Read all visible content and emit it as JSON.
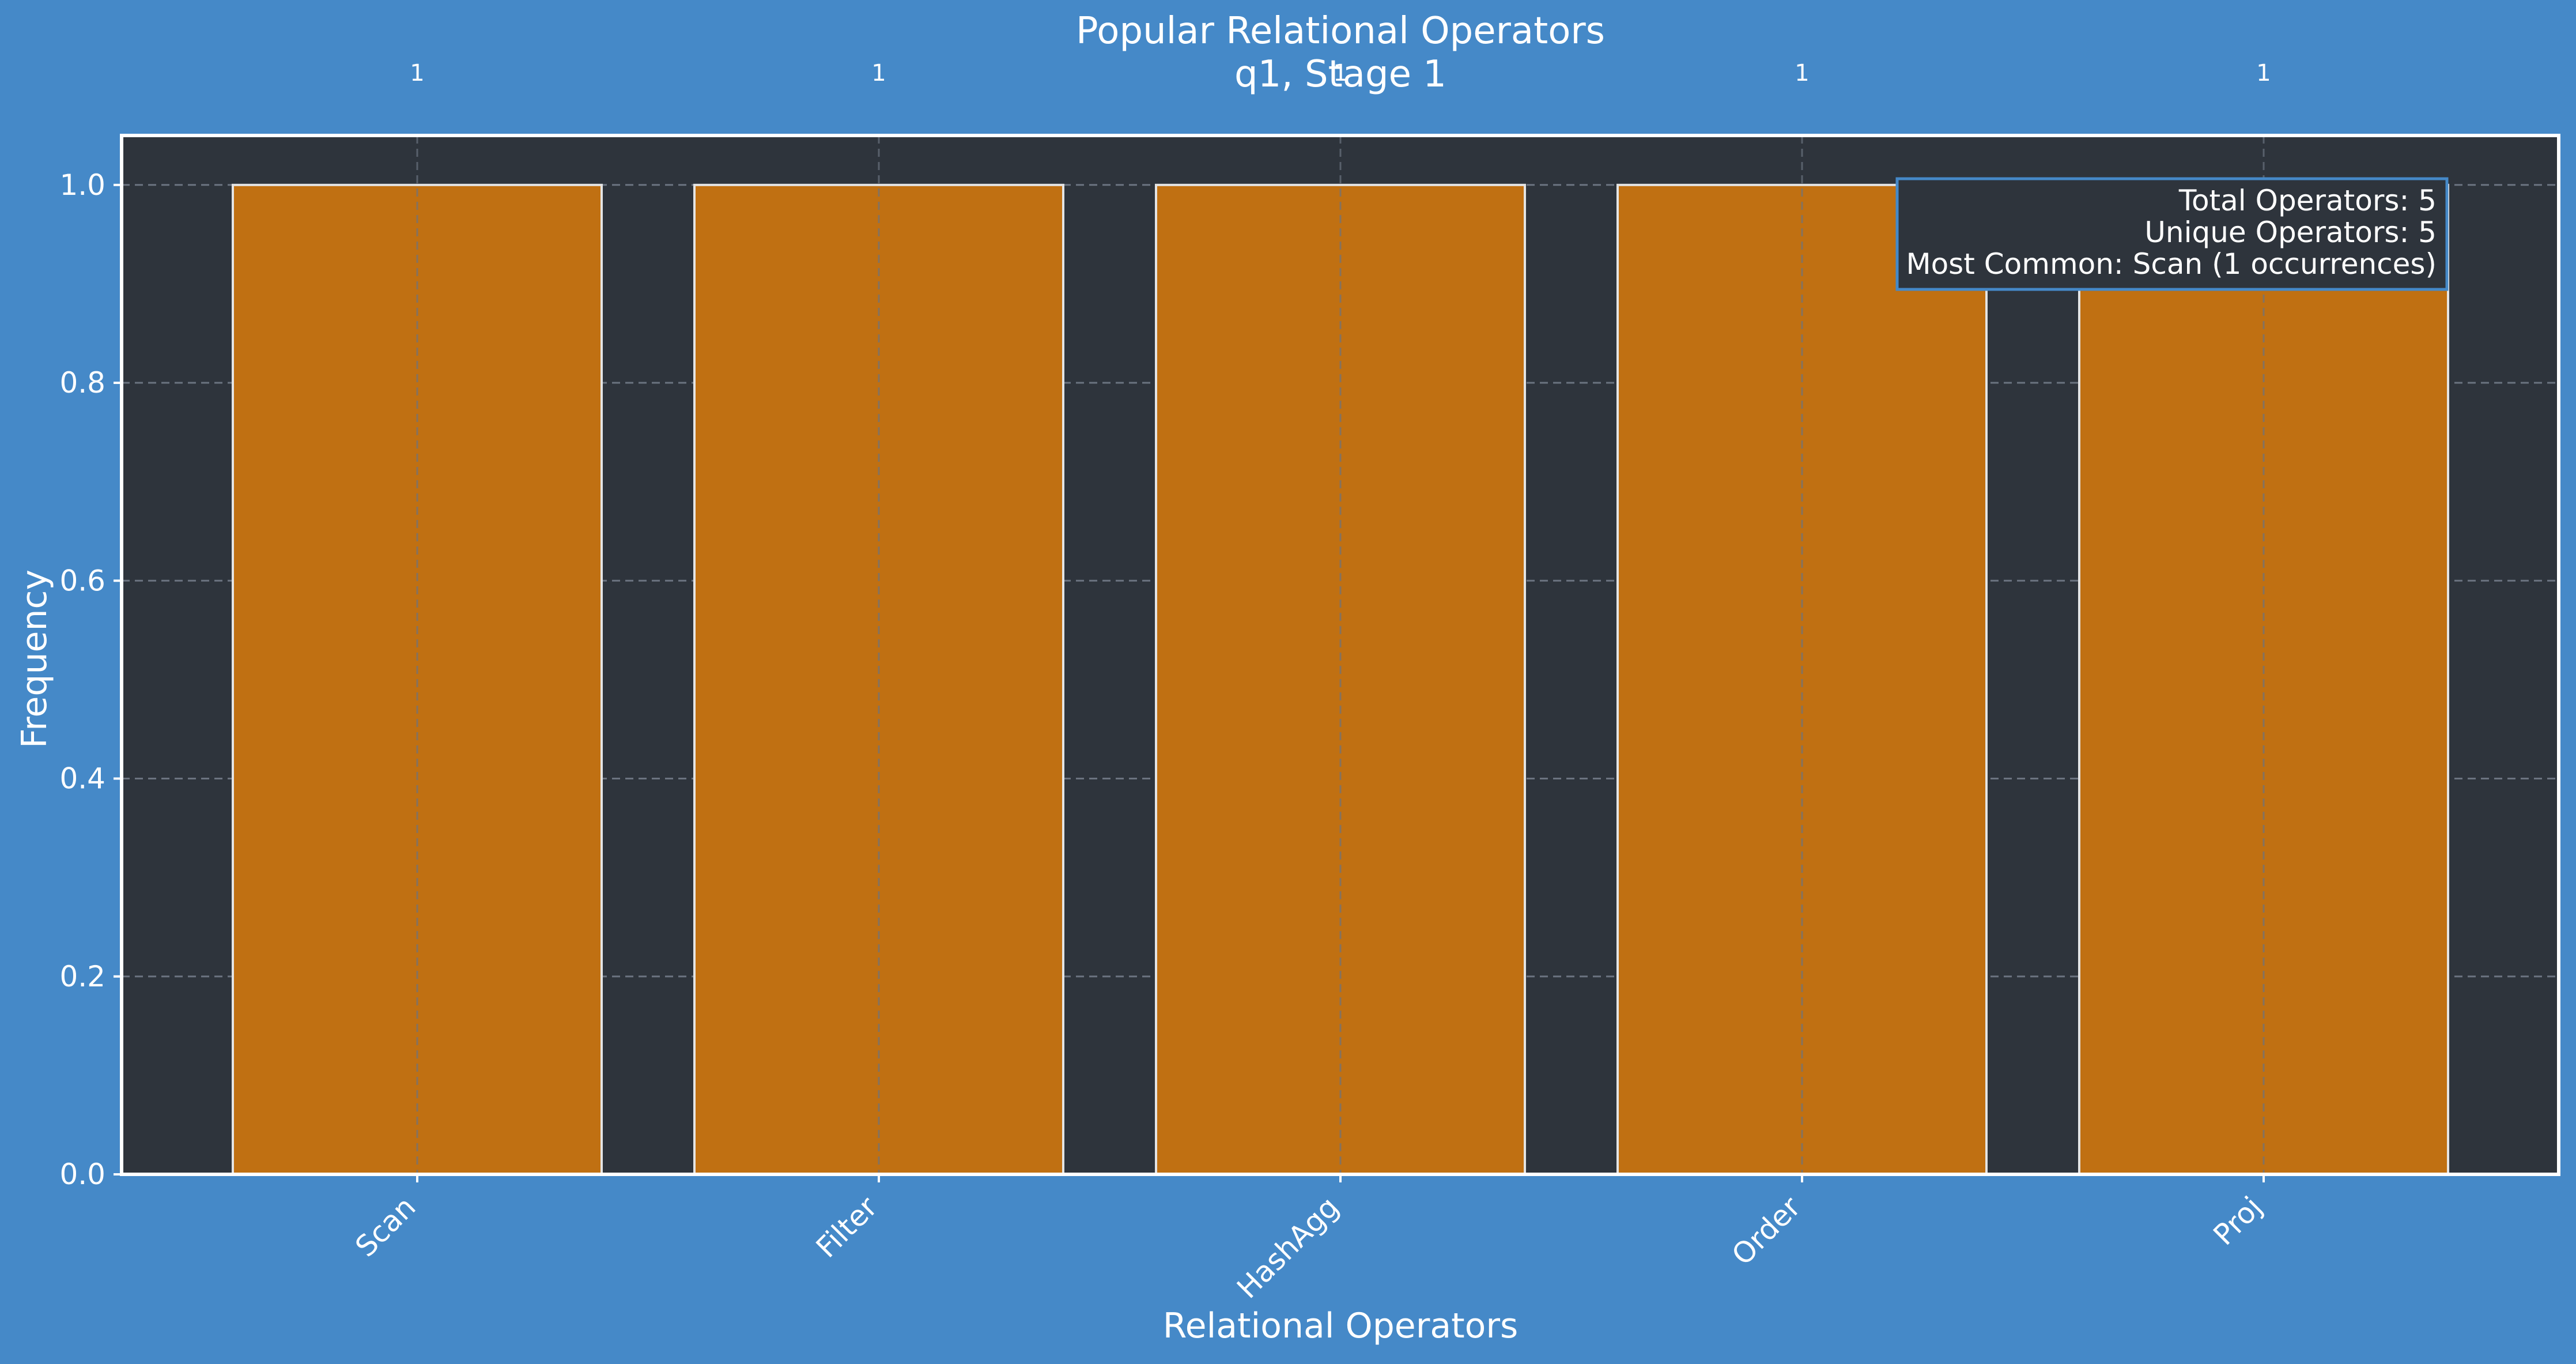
{
  "colors": {
    "background": "#4589c8",
    "plot_background": "#2e343c",
    "bar_fill": "#c07012",
    "bar_edge": "#e4e4e4",
    "grid": "#6b7380",
    "text": "#ffffff",
    "annotation_border": "#4589c8"
  },
  "chart_data": {
    "type": "bar",
    "title": "Popular Relational Operators",
    "subtitle": "q1, Stage 1",
    "xlabel": "Relational Operators",
    "ylabel": "Frequency",
    "categories": [
      "Scan",
      "Filter",
      "HashAgg",
      "Order",
      "Proj"
    ],
    "values": [
      1,
      1,
      1,
      1,
      1
    ],
    "data_labels": [
      "1",
      "1",
      "1",
      "1",
      "1"
    ],
    "ylim": [
      0,
      1.05
    ],
    "yticks": [
      0.0,
      0.2,
      0.4,
      0.6,
      0.8,
      1.0
    ],
    "ytick_labels": [
      "0.0",
      "0.2",
      "0.4",
      "0.6",
      "0.8",
      "1.0"
    ],
    "grid": true,
    "legend": "none",
    "annotation_box": {
      "placement": "top-right",
      "lines": [
        "Total Operators: 5",
        "Unique Operators: 5",
        "Most Common: Scan (1 occurrences)"
      ]
    }
  }
}
